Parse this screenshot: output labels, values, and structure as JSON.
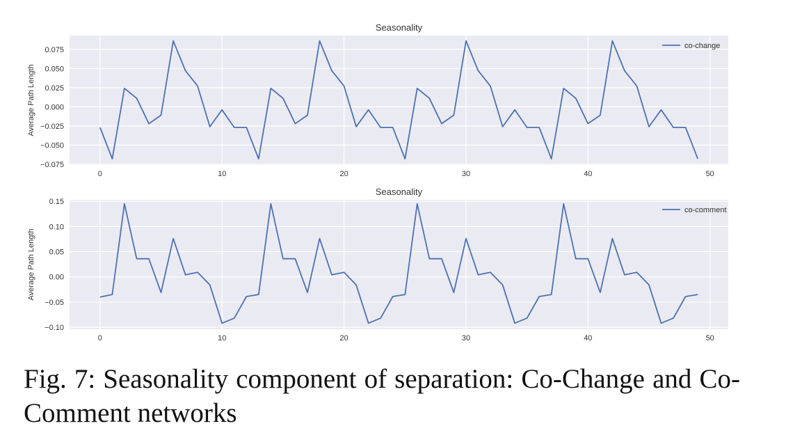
{
  "figure": {
    "caption": "Fig. 7: Seasonality component of separation: Co-Change and Co-Comment networks"
  },
  "colors": {
    "plot_background": "#eaeaf2",
    "grid": "#ffffff",
    "line": "#4c72b0",
    "text": "#333333"
  },
  "chart_data": [
    {
      "type": "line",
      "title": "Seasonality",
      "xlabel": "",
      "ylabel": "Average Path Length",
      "xlim": [
        -2.5,
        51.5
      ],
      "ylim": [
        -0.076,
        0.093
      ],
      "xticks": [
        0,
        10,
        20,
        30,
        40,
        50
      ],
      "xtick_labels": [
        "0",
        "10",
        "20",
        "30",
        "40",
        "50"
      ],
      "yticks": [
        -0.075,
        -0.05,
        -0.025,
        0.0,
        0.025,
        0.05,
        0.075
      ],
      "ytick_labels": [
        "−0.075",
        "−0.050",
        "−0.025",
        "0.000",
        "0.025",
        "0.050",
        "0.075"
      ],
      "grid": true,
      "legend": "top-right",
      "series": [
        {
          "name": "co-change",
          "x": [
            0,
            1,
            2,
            3,
            4,
            5,
            6,
            7,
            8,
            9,
            10,
            11,
            12,
            13,
            14,
            15,
            16,
            17,
            18,
            19,
            20,
            21,
            22,
            23,
            24,
            25,
            26,
            27,
            28,
            29,
            30,
            31,
            32,
            33,
            34,
            35,
            36,
            37,
            38,
            39,
            40,
            41,
            42,
            43,
            44,
            45,
            46,
            47,
            48,
            49
          ],
          "values": [
            -0.027,
            -0.068,
            0.024,
            0.011,
            -0.022,
            -0.011,
            0.086,
            0.047,
            0.027,
            -0.026,
            -0.004,
            -0.027,
            -0.027,
            -0.068,
            0.024,
            0.011,
            -0.022,
            -0.011,
            0.086,
            0.047,
            0.027,
            -0.026,
            -0.004,
            -0.027,
            -0.027,
            -0.068,
            0.024,
            0.011,
            -0.022,
            -0.011,
            0.086,
            0.047,
            0.027,
            -0.026,
            -0.004,
            -0.027,
            -0.027,
            -0.068,
            0.024,
            0.011,
            -0.022,
            -0.011,
            0.086,
            0.047,
            0.027,
            -0.026,
            -0.004,
            -0.027,
            -0.027,
            -0.068
          ]
        }
      ]
    },
    {
      "type": "line",
      "title": "Seasonality",
      "xlabel": "",
      "ylabel": "Average Path Length",
      "xlim": [
        -2.5,
        51.5
      ],
      "ylim": [
        -0.104,
        0.153
      ],
      "xticks": [
        0,
        10,
        20,
        30,
        40,
        50
      ],
      "xtick_labels": [
        "0",
        "10",
        "20",
        "30",
        "40",
        "50"
      ],
      "yticks": [
        -0.1,
        -0.05,
        0.0,
        0.05,
        0.1,
        0.15
      ],
      "ytick_labels": [
        "−0.10",
        "−0.05",
        "0.00",
        "0.05",
        "0.10",
        "0.15"
      ],
      "grid": true,
      "legend": "top-right",
      "series": [
        {
          "name": "co-comment",
          "x": [
            0,
            1,
            2,
            3,
            4,
            5,
            6,
            7,
            8,
            9,
            10,
            11,
            12,
            13,
            14,
            15,
            16,
            17,
            18,
            19,
            20,
            21,
            22,
            23,
            24,
            25,
            26,
            27,
            28,
            29,
            30,
            31,
            32,
            33,
            34,
            35,
            36,
            37,
            38,
            39,
            40,
            41,
            42,
            43,
            44,
            45,
            46,
            47,
            48,
            49
          ],
          "values": [
            -0.04,
            -0.035,
            0.145,
            0.036,
            0.036,
            -0.031,
            0.076,
            0.004,
            0.009,
            -0.016,
            -0.092,
            -0.082,
            -0.039,
            -0.035,
            0.145,
            0.036,
            0.036,
            -0.031,
            0.076,
            0.004,
            0.009,
            -0.016,
            -0.092,
            -0.082,
            -0.039,
            -0.035,
            0.145,
            0.036,
            0.036,
            -0.031,
            0.076,
            0.004,
            0.009,
            -0.016,
            -0.092,
            -0.082,
            -0.039,
            -0.035,
            0.145,
            0.036,
            0.036,
            -0.031,
            0.076,
            0.004,
            0.009,
            -0.016,
            -0.092,
            -0.082,
            -0.039,
            -0.035
          ]
        }
      ]
    }
  ]
}
